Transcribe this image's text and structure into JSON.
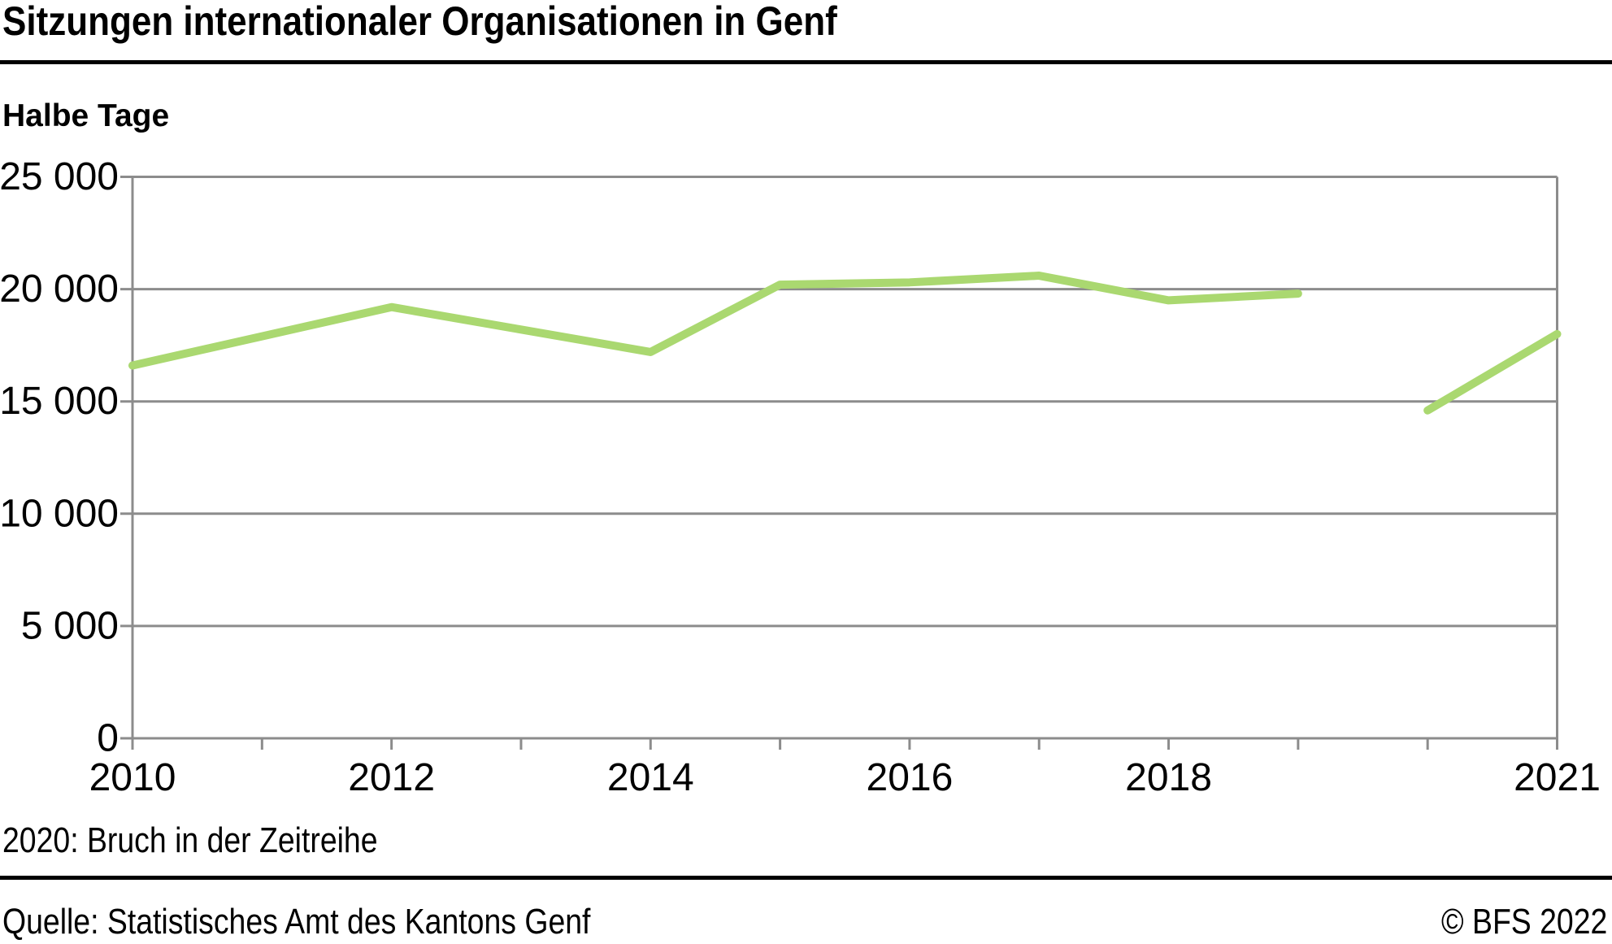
{
  "header": {
    "title": "Sitzungen internationaler Organisationen in Genf",
    "unit_label": "Halbe Tage"
  },
  "footnote": "2020: Bruch in der Zeitreihe",
  "footer": {
    "source": "Quelle: Statistisches Amt des Kantons Genf",
    "copyright": "© BFS 2022"
  },
  "chart_data": {
    "type": "line",
    "title": "Sitzungen internationaler Organisationen in Genf",
    "ylabel": "Halbe Tage",
    "xlabel": "",
    "ylim": [
      0,
      25000
    ],
    "x_range": [
      2010,
      2021
    ],
    "grid": "horizontal-only",
    "legend_position": "none",
    "break_year": 2020,
    "break_note": "2020: Bruch in der Zeitreihe",
    "ytick_values": [
      0,
      5000,
      10000,
      15000,
      20000,
      25000
    ],
    "ytick_labels": [
      "0",
      "5 000",
      "10 000",
      "15 000",
      "20 000",
      "25 000"
    ],
    "xtick_years": [
      2010,
      2011,
      2012,
      2013,
      2014,
      2015,
      2016,
      2017,
      2018,
      2019,
      2020,
      2021
    ],
    "xtick_labeled_years": [
      2010,
      2012,
      2014,
      2016,
      2018,
      2021
    ],
    "colors": {
      "line": "#aad870",
      "grid": "#8c8c8c",
      "axis": "#8c8c8c",
      "text": "#000000",
      "rule": "#000000",
      "background": "#ffffff"
    },
    "series": [
      {
        "name": "2010–2019",
        "points": [
          [
            2010,
            16600
          ],
          [
            2011,
            17900
          ],
          [
            2012,
            19200
          ],
          [
            2013,
            18200
          ],
          [
            2014,
            17200
          ],
          [
            2015,
            20200
          ],
          [
            2016,
            20300
          ],
          [
            2017,
            20600
          ],
          [
            2018,
            19500
          ],
          [
            2019,
            19800
          ]
        ]
      },
      {
        "name": "2020–2021",
        "points": [
          [
            2020,
            14600
          ],
          [
            2021,
            18000
          ]
        ]
      }
    ]
  }
}
